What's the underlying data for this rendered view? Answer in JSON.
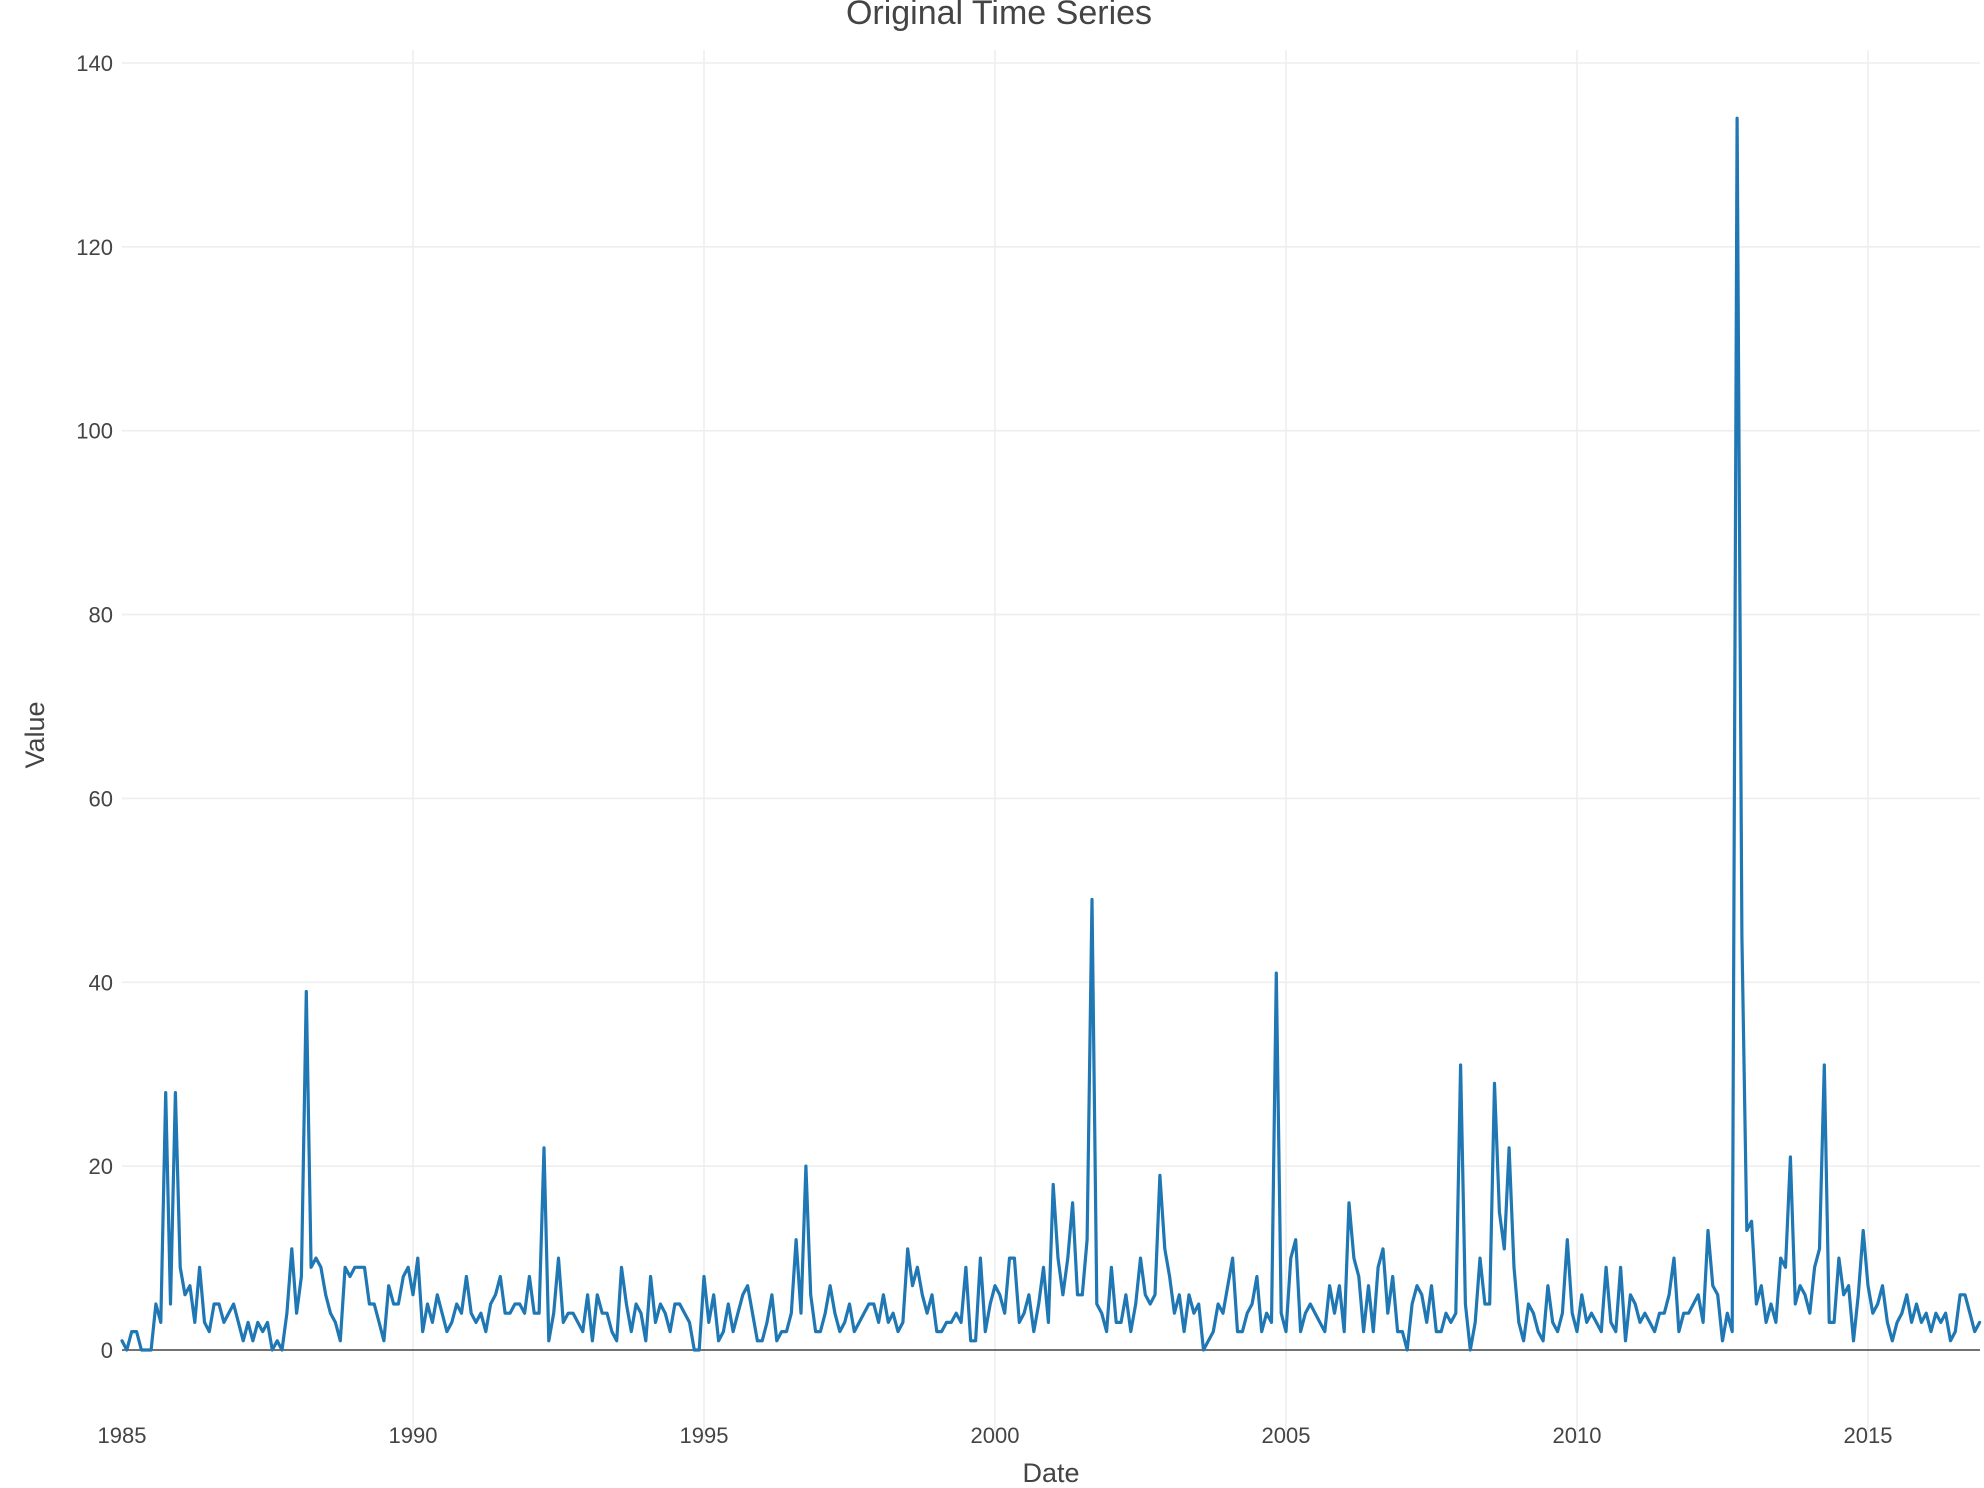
{
  "chart_data": {
    "type": "line",
    "title": "Original Time Series",
    "xlabel": "Date",
    "ylabel": "Value",
    "xlim": [
      1985.0,
      2016.9
    ],
    "ylim": [
      -10,
      142
    ],
    "x_ticks": [
      1985,
      1990,
      1995,
      2000,
      2005,
      2010,
      2015
    ],
    "x_tick_labels": [
      "1985",
      "1990",
      "1995",
      "2000",
      "2005",
      "2010",
      "2015"
    ],
    "y_ticks": [
      0,
      20,
      40,
      60,
      80,
      100,
      120,
      140
    ],
    "y_tick_labels": [
      "0",
      "20",
      "40",
      "60",
      "80",
      "100",
      "120",
      "140"
    ],
    "grid": true,
    "line_color": "#1f77b4",
    "series": [
      {
        "values": [
          1,
          0,
          2,
          2,
          0,
          0,
          0,
          5,
          3,
          28,
          5,
          28,
          9,
          6,
          7,
          3,
          9,
          3,
          2,
          5,
          5,
          3,
          4,
          5,
          3,
          1,
          3,
          1,
          3,
          2,
          3,
          0,
          1,
          0,
          4,
          11,
          4,
          8,
          39,
          9,
          10,
          9,
          6,
          4,
          3,
          1,
          9,
          8,
          9,
          9,
          9,
          5,
          5,
          3,
          1,
          7,
          5,
          5,
          8,
          9,
          6,
          10,
          2,
          5,
          3,
          6,
          4,
          2,
          3,
          5,
          4,
          8,
          4,
          3,
          4,
          2,
          5,
          6,
          8,
          4,
          4,
          5,
          5,
          4,
          8,
          4,
          4,
          22,
          1,
          4,
          10,
          3,
          4,
          4,
          3,
          2,
          6,
          1,
          6,
          4,
          4,
          2,
          1,
          9,
          5,
          2,
          5,
          4,
          1,
          8,
          3,
          5,
          4,
          2,
          5,
          5,
          4,
          3,
          0,
          0,
          8,
          3,
          6,
          1,
          2,
          5,
          2,
          4,
          6,
          7,
          4,
          1,
          1,
          3,
          6,
          1,
          2,
          2,
          4,
          12,
          4,
          20,
          6,
          2,
          2,
          4,
          7,
          4,
          2,
          3,
          5,
          2,
          3,
          4,
          5,
          5,
          3,
          6,
          3,
          4,
          2,
          3,
          11,
          7,
          9,
          6,
          4,
          6,
          2,
          2,
          3,
          3,
          4,
          3,
          9,
          1,
          1,
          10,
          2,
          5,
          7,
          6,
          4,
          10,
          10,
          3,
          4,
          6,
          2,
          5,
          9,
          3,
          18,
          10,
          6,
          10,
          16,
          6,
          6,
          12,
          49,
          5,
          4,
          2,
          9,
          3,
          3,
          6,
          2,
          5,
          10,
          6,
          5,
          6,
          19,
          11,
          8,
          4,
          6,
          2,
          6,
          4,
          5,
          0,
          1,
          2,
          5,
          4,
          7,
          10,
          2,
          2,
          4,
          5,
          8,
          2,
          4,
          3,
          41,
          4,
          2,
          10,
          12,
          2,
          4,
          5,
          4,
          3,
          2,
          7,
          4,
          7,
          2,
          16,
          10,
          8,
          2,
          7,
          2,
          9,
          11,
          4,
          8,
          2,
          2,
          0,
          5,
          7,
          6,
          3,
          7,
          2,
          2,
          4,
          3,
          4,
          31,
          5,
          0,
          3,
          10,
          5,
          5,
          29,
          15,
          11,
          22,
          9,
          3,
          1,
          5,
          4,
          2,
          1,
          7,
          3,
          2,
          4,
          12,
          4,
          2,
          6,
          3,
          4,
          3,
          2,
          9,
          3,
          2,
          9,
          1,
          6,
          5,
          3,
          4,
          3,
          2,
          4,
          4,
          6,
          10,
          2,
          4,
          4,
          5,
          6,
          3,
          13,
          7,
          6,
          1,
          4,
          2,
          134,
          45,
          13,
          14,
          5,
          7,
          3,
          5,
          3,
          10,
          9,
          21,
          5,
          7,
          6,
          4,
          9,
          11,
          31,
          3,
          3,
          10,
          6,
          7,
          1,
          6,
          13,
          7,
          4,
          5,
          7,
          3,
          1,
          3,
          4,
          6,
          3,
          5,
          3,
          4,
          2,
          4,
          3,
          4,
          1,
          2,
          6,
          6,
          4,
          2,
          3
        ]
      }
    ]
  }
}
